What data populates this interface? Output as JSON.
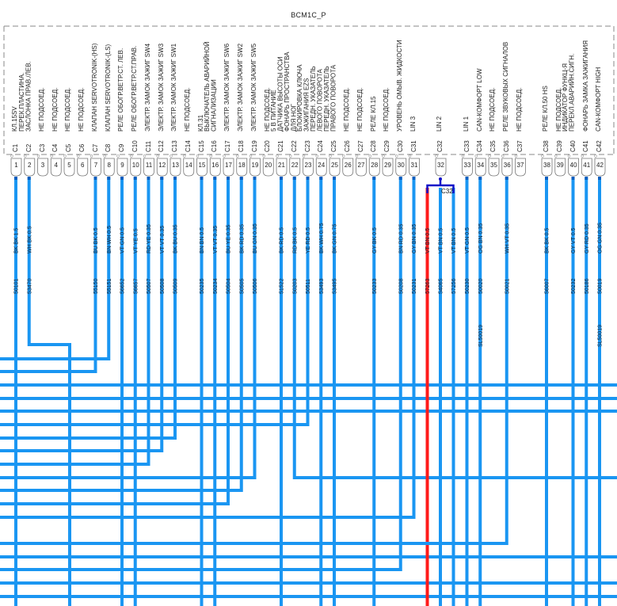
{
  "connector": {
    "title": "BCM1C_P",
    "branch_label": "C32",
    "splice_label": "SL50019"
  },
  "colors": {
    "wire": "#1a96f2",
    "wire_hot": "#ff1a1a",
    "bracket": "#1010c8",
    "dot": "#0a5fc0",
    "frame": "#8a8a8a"
  },
  "pins": [
    {
      "n": "1",
      "c": "C1",
      "desc": [
        "КЛ.15SV"
      ]
    },
    {
      "n": "2",
      "c": "C2",
      "desc": [
        "ПЕРЕК.ПЛАСТИНА.",
        "ЗАСЛОНКА ПРАВ./ЛЕВ."
      ]
    },
    {
      "n": "3",
      "c": "C3",
      "desc": [
        "НЕ ПОДСОЕД."
      ]
    },
    {
      "n": "4",
      "c": "C4",
      "desc": [
        "НЕ ПОДСОЕД."
      ]
    },
    {
      "n": "5",
      "c": "C5",
      "desc": [
        "НЕ ПОДСОЕД."
      ]
    },
    {
      "n": "6",
      "c": "C6",
      "desc": [
        "НЕ ПОДСОЕД."
      ]
    },
    {
      "n": "7",
      "c": "C7",
      "desc": [
        "КЛАПАН SERVOTRONIK-(HS)"
      ]
    },
    {
      "n": "8",
      "c": "C8",
      "desc": [
        "КЛАПАН SERVOTRONIK-(LS)"
      ]
    },
    {
      "n": "9",
      "c": "C9",
      "desc": [
        "РЕЛЕ ОБОГР.ВЕТР.СТ. ЛЕВ."
      ]
    },
    {
      "n": "10",
      "c": "C10",
      "desc": [
        "РЕЛЕ ОБОГР.ВЕТР.СТ.ПРАВ."
      ]
    },
    {
      "n": "11",
      "c": "C11",
      "desc": [
        "ЭЛЕКТР. ЗАМОК ЗАЖИГ SW4"
      ]
    },
    {
      "n": "12",
      "c": "C12",
      "desc": [
        "ЭЛЕКТР. ЗАМОК ЗАЖИГ SW3"
      ]
    },
    {
      "n": "13",
      "c": "C13",
      "desc": [
        "ЭЛЕКТР. ЗАМОК ЗАЖИГ SW1"
      ]
    },
    {
      "n": "14",
      "c": "C14",
      "desc": [
        "НЕ ПОДСОЕД."
      ]
    },
    {
      "n": "15",
      "c": "C15",
      "desc": [
        "КЛ.31"
      ]
    },
    {
      "n": "16",
      "c": "C16",
      "desc": [
        "ВЫКЛЮЧАТЕЛЬ АВАРИЙНОЙ",
        "СИГНАЛИЗАЦИИ"
      ]
    },
    {
      "n": "17",
      "c": "C17",
      "desc": [
        "ЭЛЕКТР. ЗАМОК ЗАЖИГ SW6"
      ]
    },
    {
      "n": "18",
      "c": "C18",
      "desc": [
        "ЭЛЕКТР. ЗАМОК ЗАЖИГ SW2"
      ]
    },
    {
      "n": "19",
      "c": "C19",
      "desc": [
        "ЭЛЕКТР. ЗАМОК ЗАЖИГ SW5"
      ]
    },
    {
      "n": "20",
      "c": "C20",
      "desc": [
        "НЕ ПОДСОЕД."
      ]
    },
    {
      "n": "21",
      "c": "C21",
      "desc": [
        "5 В ПИТАНИЕ",
        "ДАТЧИКА ВЫСОТЫ ОСИ"
      ]
    },
    {
      "n": "22",
      "c": "C22",
      "desc": [
        "ФОНАРЬ ПРОСТРАНСТВА",
        "ДЛЯ НОГ"
      ]
    },
    {
      "n": "23",
      "c": "C23",
      "desc": [
        "БЛОКИРОВКА КЛЮЧА",
        "ЗАЖИГАНИЯ EZS"
      ]
    },
    {
      "n": "24",
      "c": "C24",
      "desc": [
        "ПЕРЕДН. УКАЗАТЕЛЬ",
        "ЛЕВОГО ПОВОРОТА"
      ]
    },
    {
      "n": "25",
      "c": "C25",
      "desc": [
        "ПЕРЕДН. УКАЗАТЕЛЬ",
        "ПРАВОГО ПОВОРОТА"
      ]
    },
    {
      "n": "26",
      "c": "C26",
      "desc": [
        "НЕ ПОДСОЕД."
      ]
    },
    {
      "n": "27",
      "c": "C27",
      "desc": [
        "НЕ ПОДСОЕД."
      ]
    },
    {
      "n": "28",
      "c": "C28",
      "desc": [
        "РЕЛЕ КЛ.15"
      ]
    },
    {
      "n": "29",
      "c": "C29",
      "desc": [
        "НЕ ПОДСОЕД."
      ]
    },
    {
      "n": "30",
      "c": "C30",
      "desc": [
        "УРОВЕНЬ ОМЫВ. ЖИДКОСТИ"
      ]
    },
    {
      "n": "31",
      "c": "C31",
      "desc": [
        "LIN 3"
      ]
    },
    {
      "n": "32",
      "c": "C32",
      "desc": [
        "LIN 2"
      ]
    },
    {
      "n": "33",
      "c": "C33",
      "desc": [
        "LIN 1"
      ]
    },
    {
      "n": "34",
      "c": "C34",
      "desc": [
        "CAN-КОМФОРТ LOW"
      ]
    },
    {
      "n": "35",
      "c": "C35",
      "desc": [
        "НЕ ПОДСОЕД."
      ]
    },
    {
      "n": "36",
      "c": "C36",
      "desc": [
        "РЕЛЕ ЗВУКОВЫХ СИГНАЛОВ"
      ]
    },
    {
      "n": "37",
      "c": "C37",
      "desc": [
        "НЕ ПОДСОЕД."
      ]
    },
    {
      "n": "38",
      "c": "C38",
      "desc": [
        "РЕЛЕ КЛ.50 HS"
      ]
    },
    {
      "n": "39",
      "c": "C39",
      "desc": [
        "НЕ ПОДСОЕД."
      ]
    },
    {
      "n": "40",
      "c": "C40",
      "desc": [
        "ИНДИКАТОР ФУНКЦ-Я",
        "ПЕРЕКЛ.АВАРИЙН.СИГН."
      ]
    },
    {
      "n": "41",
      "c": "C41",
      "desc": [
        "ФОНАРЬ ЗАМКА ЗАЖИГАНИЯ"
      ]
    },
    {
      "n": "42",
      "c": "C42",
      "desc": [
        "CAN-КОМФОРТ HIGH"
      ]
    }
  ],
  "wires": [
    {
      "pin": 1,
      "spec": "BK BK 1.5",
      "id": "50101"
    },
    {
      "pin": 2,
      "spec": "WH BK 0.5",
      "id": "53470"
    },
    {
      "pin": 7,
      "spec": "BU BK 0.5",
      "id": "55150"
    },
    {
      "pin": 8,
      "spec": "BN WH 0.5",
      "id": "55151"
    },
    {
      "pin": 9,
      "spec": "VT GN 0.5",
      "id": "56652"
    },
    {
      "pin": 10,
      "spec": "VT YE 0.5",
      "id": "56657"
    },
    {
      "pin": 11,
      "spec": "RD YE 0.35",
      "id": "50507"
    },
    {
      "pin": 12,
      "spec": "VT VT 0.35",
      "id": "50508"
    },
    {
      "pin": 13,
      "spec": "BK BU 0.35",
      "id": "50509"
    },
    {
      "pin": 15,
      "spec": "BN BN 0.5",
      "id": "50235"
    },
    {
      "pin": 16,
      "spec": "VT VT 0.35",
      "id": "50234"
    },
    {
      "pin": 17,
      "spec": "BU YE 0.35",
      "id": "50504"
    },
    {
      "pin": 18,
      "spec": "BK RD 0.35",
      "id": "50505"
    },
    {
      "pin": 19,
      "spec": "BU GN 0.35",
      "id": "50506"
    },
    {
      "pin": 21,
      "spec": "BK RD 0.5",
      "id": "51522"
    },
    {
      "pin": 22,
      "spec": "RD BK 0.5",
      "id": "50203"
    },
    {
      "pin": 23,
      "spec": "YE RD 0.5",
      "id": "50511"
    },
    {
      "pin": 24,
      "spec": "BK WH 0.75",
      "id": "53493"
    },
    {
      "pin": 25,
      "spec": "BK GN 0.75",
      "id": "53495"
    },
    {
      "pin": 28,
      "spec": "GY BK 0.5",
      "id": "50233"
    },
    {
      "pin": 30,
      "spec": "BN RD 0.35",
      "id": "50208"
    },
    {
      "pin": 31,
      "spec": "GY BN 0.35",
      "id": "50231"
    },
    {
      "pin": 32,
      "branch": -1,
      "spec": "VT BN 0.5",
      "id": "57263",
      "hot": true
    },
    {
      "pin": 32,
      "branch": 0,
      "spec": "VT BN 0.5",
      "id": "54065"
    },
    {
      "pin": 32,
      "branch": 1,
      "spec": "VT BN 0.5",
      "id": "57256"
    },
    {
      "pin": 33,
      "spec": "VT GN 0.5",
      "id": "50230"
    },
    {
      "pin": 34,
      "spec": "OG BN 0.35",
      "id": "50020",
      "splice": true
    },
    {
      "pin": 36,
      "spec": "WH VT 0.35",
      "id": "50021"
    },
    {
      "pin": 38,
      "spec": "BK BK 0.5",
      "id": "56007"
    },
    {
      "pin": 40,
      "spec": "GY VT 0.5",
      "id": "50232"
    },
    {
      "pin": 41,
      "spec": "GY RD 0.35",
      "id": "50186"
    },
    {
      "pin": 42,
      "spec": "OG GN 0.35",
      "id": "50019",
      "splice": true
    }
  ]
}
